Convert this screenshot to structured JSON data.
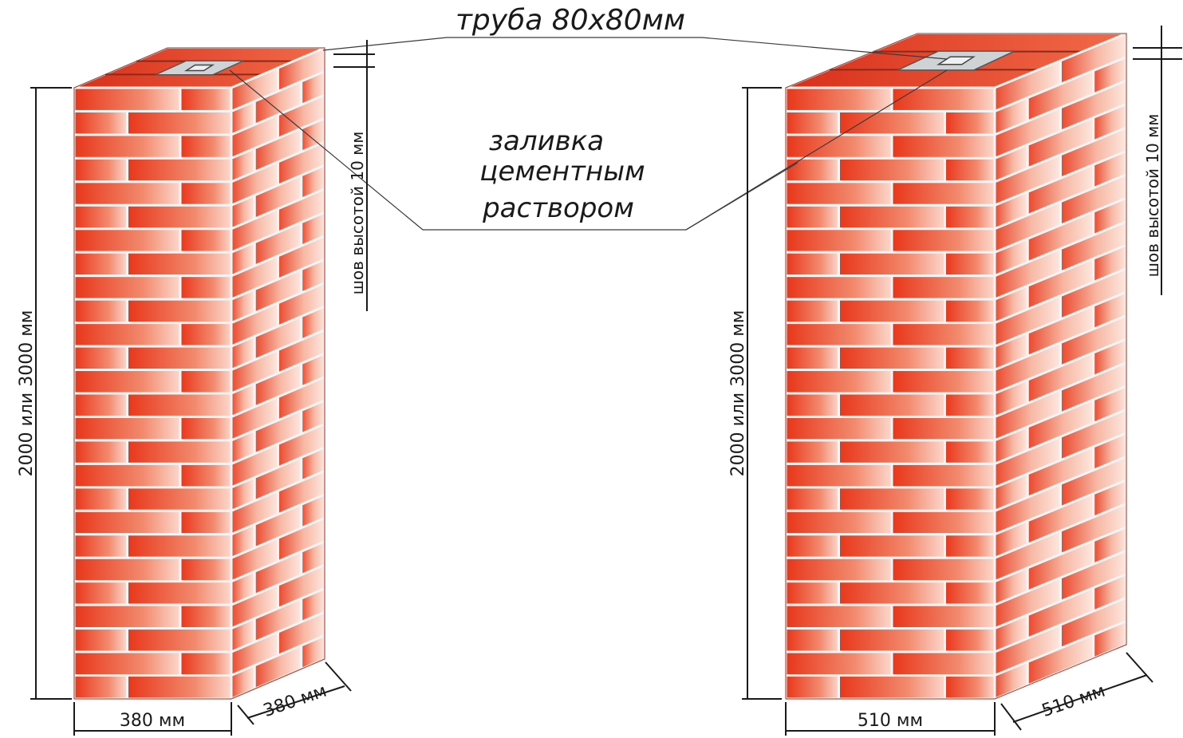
{
  "labels": {
    "pipe": "труба  80x80мм",
    "fill_line1": "заливка",
    "fill_line2": "цементным",
    "fill_line3": "раствором"
  },
  "pillars": [
    {
      "height_label": "2000 или 3000 мм",
      "width_label": "380 мм",
      "depth_label": "380 мм",
      "seam_label": "шов высотой 10 мм"
    },
    {
      "height_label": "2000 или 3000 мм",
      "width_label": "510 мм",
      "depth_label": "510 мм",
      "seam_label": "шов высотой 10 мм"
    }
  ],
  "colors": {
    "brick_dark": "#e8361a",
    "brick_light": "#fbd8cc",
    "mortar": "#f4f4f4",
    "cap": "#cfd3d6"
  }
}
